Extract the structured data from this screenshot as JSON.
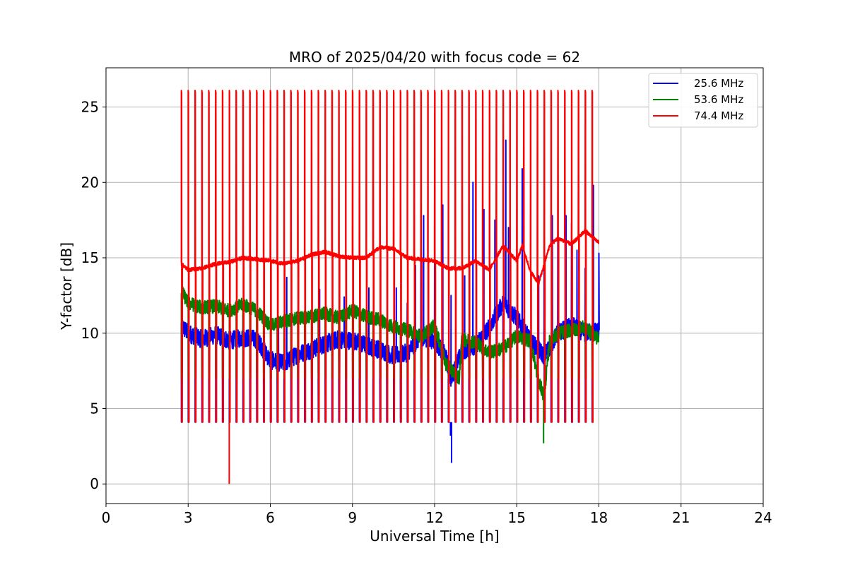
{
  "chart_data": {
    "type": "line",
    "title": "MRO of 2025/04/20 with focus code = 62",
    "xlabel": "Universal Time [h]",
    "ylabel": "Y-factor [dB]",
    "xlim": [
      0,
      24
    ],
    "ylim": [
      -1.3,
      27.6
    ],
    "xticks": [
      0,
      3,
      6,
      9,
      12,
      15,
      18,
      21,
      24
    ],
    "yticks": [
      0,
      5,
      10,
      15,
      20,
      25
    ],
    "grid": true,
    "legend_position": "top-right",
    "data_range_hours": [
      2.75,
      18.0
    ],
    "calibration_spike_interval_hours": 0.25,
    "series": [
      {
        "name": "25.6 MHz",
        "color": "#0000ff",
        "calibration_low": 4.1,
        "baseline": [
          [
            2.75,
            10.5
          ],
          [
            3.0,
            10.0
          ],
          [
            3.5,
            9.6
          ],
          [
            4.0,
            9.9
          ],
          [
            4.5,
            9.5
          ],
          [
            5.0,
            9.7
          ],
          [
            5.5,
            9.6
          ],
          [
            6.0,
            8.2
          ],
          [
            6.5,
            8.0
          ],
          [
            7.0,
            8.6
          ],
          [
            7.5,
            8.9
          ],
          [
            8.0,
            9.3
          ],
          [
            8.5,
            9.6
          ],
          [
            9.0,
            9.5
          ],
          [
            9.5,
            9.2
          ],
          [
            10.0,
            8.9
          ],
          [
            10.5,
            8.5
          ],
          [
            11.0,
            8.7
          ],
          [
            11.5,
            9.8
          ],
          [
            12.0,
            9.5
          ],
          [
            12.4,
            8.5
          ],
          [
            12.6,
            7.0
          ],
          [
            13.0,
            8.8
          ],
          [
            13.5,
            9.2
          ],
          [
            14.0,
            10.4
          ],
          [
            14.5,
            12.0
          ],
          [
            15.0,
            11.0
          ],
          [
            15.5,
            9.5
          ],
          [
            16.0,
            8.5
          ],
          [
            16.5,
            10.0
          ],
          [
            17.0,
            10.5
          ],
          [
            17.5,
            10.0
          ],
          [
            18.0,
            10.2
          ]
        ],
        "peaks": [
          [
            5.0,
            11.2
          ],
          [
            6.3,
            11.0
          ],
          [
            6.6,
            13.7
          ],
          [
            7.8,
            12.9
          ],
          [
            8.7,
            12.4
          ],
          [
            9.6,
            13.0
          ],
          [
            10.6,
            13.0
          ],
          [
            11.0,
            12.0
          ],
          [
            11.3,
            14.5
          ],
          [
            11.5,
            15.2
          ],
          [
            11.6,
            17.8
          ],
          [
            12.0,
            15.3
          ],
          [
            12.3,
            18.5
          ],
          [
            12.6,
            12.5
          ],
          [
            13.1,
            13.8
          ],
          [
            13.4,
            20.0
          ],
          [
            13.8,
            18.2
          ],
          [
            14.2,
            17.5
          ],
          [
            14.6,
            22.8
          ],
          [
            14.7,
            17.0
          ],
          [
            15.2,
            20.9
          ],
          [
            15.8,
            13.8
          ],
          [
            16.0,
            15.0
          ],
          [
            16.3,
            17.8
          ],
          [
            16.5,
            16.5
          ],
          [
            16.8,
            17.8
          ],
          [
            17.0,
            17.3
          ],
          [
            17.2,
            15.5
          ],
          [
            17.5,
            14.3
          ],
          [
            17.8,
            19.8
          ],
          [
            18.0,
            15.3
          ]
        ],
        "dips": [
          [
            12.58,
            3.2
          ],
          [
            12.62,
            1.4
          ]
        ]
      },
      {
        "name": "53.6 MHz",
        "color": "#008000",
        "calibration_low": 7.0,
        "baseline": [
          [
            2.75,
            12.8
          ],
          [
            3.0,
            12.0
          ],
          [
            3.5,
            11.7
          ],
          [
            4.0,
            11.8
          ],
          [
            4.5,
            11.5
          ],
          [
            5.0,
            11.9
          ],
          [
            5.5,
            11.5
          ],
          [
            6.0,
            10.5
          ],
          [
            6.5,
            10.8
          ],
          [
            7.0,
            11.0
          ],
          [
            7.5,
            11.1
          ],
          [
            8.0,
            11.3
          ],
          [
            8.5,
            11.0
          ],
          [
            9.0,
            11.5
          ],
          [
            9.5,
            11.1
          ],
          [
            10.0,
            10.9
          ],
          [
            10.5,
            10.4
          ],
          [
            11.0,
            10.2
          ],
          [
            11.5,
            9.8
          ],
          [
            12.0,
            10.5
          ],
          [
            12.4,
            8.0
          ],
          [
            12.9,
            7.0
          ],
          [
            13.0,
            9.6
          ],
          [
            13.5,
            9.4
          ],
          [
            14.0,
            8.7
          ],
          [
            14.5,
            9.0
          ],
          [
            15.0,
            9.8
          ],
          [
            15.5,
            9.5
          ],
          [
            15.8,
            6.8
          ],
          [
            16.0,
            5.8
          ],
          [
            16.2,
            9.5
          ],
          [
            16.5,
            10.0
          ],
          [
            17.0,
            10.2
          ],
          [
            17.5,
            10.4
          ],
          [
            18.0,
            9.6
          ]
        ],
        "dips": [
          [
            15.98,
            2.7
          ]
        ]
      },
      {
        "name": "74.4 MHz",
        "color": "#ff0000",
        "calibration_low": 4.1,
        "calibration_high": 26.1,
        "baseline": [
          [
            2.75,
            14.6
          ],
          [
            3.0,
            14.2
          ],
          [
            3.5,
            14.3
          ],
          [
            4.0,
            14.6
          ],
          [
            4.5,
            14.7
          ],
          [
            5.0,
            15.0
          ],
          [
            5.5,
            14.9
          ],
          [
            6.0,
            14.8
          ],
          [
            6.5,
            14.6
          ],
          [
            7.0,
            14.8
          ],
          [
            7.5,
            15.2
          ],
          [
            8.0,
            15.4
          ],
          [
            8.5,
            15.1
          ],
          [
            9.0,
            15.0
          ],
          [
            9.5,
            15.0
          ],
          [
            10.0,
            15.7
          ],
          [
            10.5,
            15.6
          ],
          [
            11.0,
            15.0
          ],
          [
            11.5,
            14.9
          ],
          [
            12.0,
            14.8
          ],
          [
            12.5,
            14.3
          ],
          [
            13.0,
            14.3
          ],
          [
            13.5,
            14.8
          ],
          [
            14.0,
            14.2
          ],
          [
            14.5,
            15.8
          ],
          [
            15.0,
            14.8
          ],
          [
            15.2,
            15.8
          ],
          [
            15.5,
            14.1
          ],
          [
            15.8,
            13.3
          ],
          [
            16.2,
            15.8
          ],
          [
            16.5,
            16.3
          ],
          [
            17.0,
            15.9
          ],
          [
            17.5,
            16.8
          ],
          [
            18.0,
            16.0
          ]
        ],
        "dips": [
          [
            4.5,
            0.0
          ]
        ]
      }
    ]
  }
}
